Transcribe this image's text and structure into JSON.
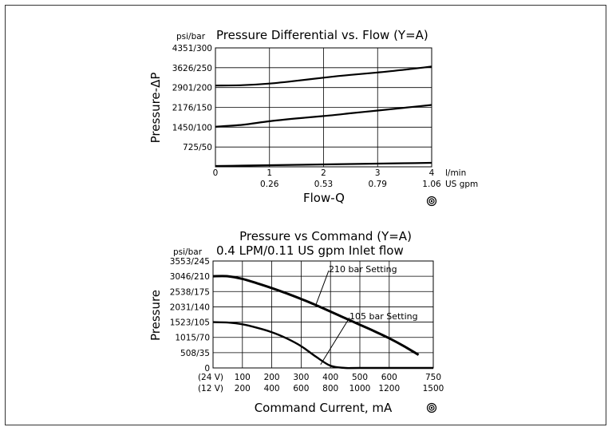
{
  "chart_data": [
    {
      "type": "line",
      "title": "Pressure Differential vs. Flow (Y=A)",
      "unit_label": "psi/bar",
      "ylabel": "Pressure-ΔP",
      "xlabel": "Flow-Q",
      "x_unit_primary": "l/min",
      "x_unit_secondary": "US gpm",
      "x_ticks": [
        {
          "value": 0,
          "label": "0",
          "sub": ""
        },
        {
          "value": 1,
          "label": "1",
          "sub": "0.26"
        },
        {
          "value": 2,
          "label": "2",
          "sub": "0.53"
        },
        {
          "value": 3,
          "label": "3",
          "sub": "0.79"
        },
        {
          "value": 4,
          "label": "4",
          "sub": "1.06"
        }
      ],
      "y_ticks": [
        {
          "value": 0,
          "label": ""
        },
        {
          "value": 50,
          "label": "725/50"
        },
        {
          "value": 100,
          "label": "1450/100"
        },
        {
          "value": 150,
          "label": "2176/150"
        },
        {
          "value": 200,
          "label": "2901/200"
        },
        {
          "value": 250,
          "label": "3626/250"
        },
        {
          "value": 300,
          "label": "4351/300"
        }
      ],
      "xlim": [
        0,
        4
      ],
      "ylim": [
        0,
        300
      ],
      "grid": true,
      "series": [
        {
          "x": [
            0,
            0.5,
            1,
            1.5,
            2,
            2.5,
            3,
            3.5,
            4
          ],
          "y": [
            2,
            3,
            4,
            5,
            6,
            7,
            8,
            9,
            10
          ]
        },
        {
          "x": [
            0,
            0.5,
            1,
            1.5,
            2,
            2.5,
            3,
            3.5,
            4
          ],
          "y": [
            101,
            106,
            115,
            122,
            128,
            135,
            142,
            149,
            156
          ]
        },
        {
          "x": [
            0,
            0.5,
            1,
            1.5,
            2,
            2.5,
            3,
            3.5,
            4
          ],
          "y": [
            205,
            206,
            210,
            217,
            225,
            232,
            238,
            245,
            253
          ]
        }
      ]
    },
    {
      "type": "line",
      "title": "Pressure vs Command (Y=A)",
      "subtitle": "0.4 LPM/0.11 US gpm Inlet flow",
      "unit_label": "psi/bar",
      "ylabel": "Pressure",
      "xlabel": "Command Current, mA",
      "x_row_labels": [
        "(24 V)",
        "(12 V)"
      ],
      "x_ticks": [
        {
          "value": 100,
          "label": "100",
          "sub": "200"
        },
        {
          "value": 200,
          "label": "200",
          "sub": "400"
        },
        {
          "value": 300,
          "label": "300",
          "sub": "600"
        },
        {
          "value": 400,
          "label": "400",
          "sub": "800"
        },
        {
          "value": 500,
          "label": "500",
          "sub": "1000"
        },
        {
          "value": 600,
          "label": "600",
          "sub": "1200"
        },
        {
          "value": 750,
          "label": "750",
          "sub": "1500"
        }
      ],
      "y_ticks": [
        {
          "value": 0,
          "label": "0"
        },
        {
          "value": 35,
          "label": "508/35"
        },
        {
          "value": 70,
          "label": "1015/70"
        },
        {
          "value": 105,
          "label": "1523/105"
        },
        {
          "value": 140,
          "label": "2031/140"
        },
        {
          "value": 175,
          "label": "2538/175"
        },
        {
          "value": 210,
          "label": "3046/210"
        },
        {
          "value": 245,
          "label": "3553/245"
        }
      ],
      "xlim": [
        0,
        750
      ],
      "ylim": [
        0,
        245
      ],
      "grid": true,
      "series": [
        {
          "name": "210 bar Setting",
          "x": [
            0,
            50,
            100,
            150,
            200,
            250,
            300,
            350,
            400,
            450,
            500,
            550,
            600,
            650,
            700
          ],
          "y": [
            210,
            210,
            204,
            194,
            183,
            171,
            158,
            144,
            129,
            114,
            99,
            84,
            68,
            50,
            30
          ]
        },
        {
          "name": "105 bar Setting",
          "x": [
            0,
            50,
            100,
            150,
            200,
            250,
            300,
            350,
            400,
            450,
            500,
            750
          ],
          "y": [
            105,
            104,
            100,
            92,
            82,
            68,
            50,
            26,
            5,
            0,
            0,
            0
          ]
        }
      ]
    }
  ]
}
